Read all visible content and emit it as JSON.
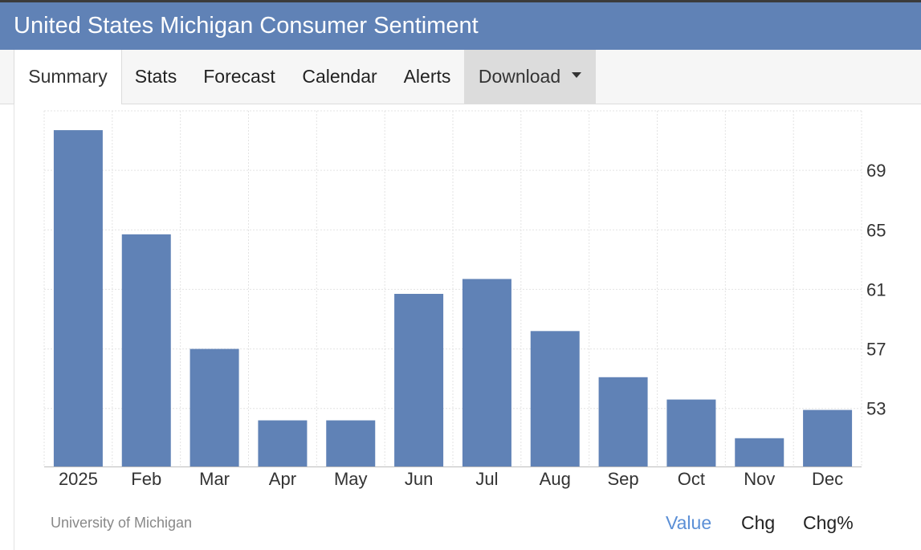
{
  "header": {
    "title": "United States Michigan Consumer Sentiment"
  },
  "tabs": [
    {
      "label": "Summary"
    },
    {
      "label": "Stats"
    },
    {
      "label": "Forecast"
    },
    {
      "label": "Calendar"
    },
    {
      "label": "Alerts"
    },
    {
      "label": "Download"
    }
  ],
  "footer": {
    "source": "University of Michigan",
    "toggles": [
      {
        "label": "Value",
        "active": true
      },
      {
        "label": "Chg",
        "active": false
      },
      {
        "label": "Chg%",
        "active": false
      }
    ]
  },
  "colors": {
    "bar": "#6082b6",
    "header": "#6082b6",
    "grid": "#e3e3e3",
    "active_toggle": "#5b8fd6"
  },
  "chart_data": {
    "type": "bar",
    "title": "",
    "xlabel": "",
    "ylabel": "",
    "categories": [
      "2025",
      "Feb",
      "Mar",
      "Apr",
      "May",
      "Jun",
      "Jul",
      "Aug",
      "Sep",
      "Oct",
      "Nov",
      "Dec"
    ],
    "values": [
      71.7,
      64.7,
      57.0,
      52.2,
      52.2,
      60.7,
      61.7,
      58.2,
      55.1,
      53.6,
      51.0,
      52.9
    ],
    "y_ticks": [
      53,
      57,
      61,
      65,
      69
    ],
    "ylim": [
      49.1,
      73.0
    ],
    "y_axis_position": "right",
    "grid": true
  }
}
